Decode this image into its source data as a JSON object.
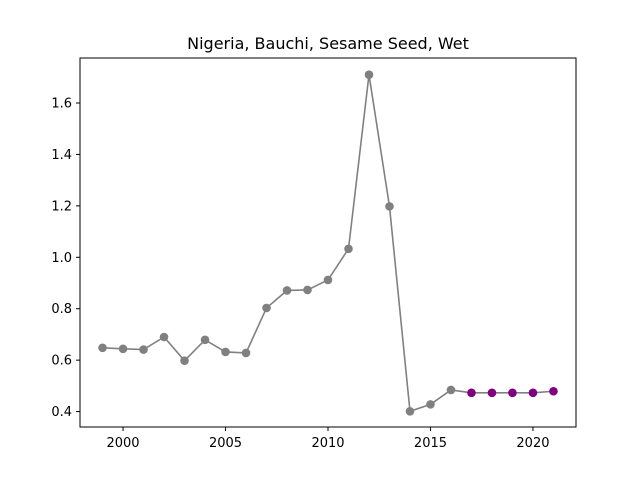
{
  "chart_data": {
    "type": "line",
    "title": "Nigeria, Bauchi, Sesame Seed, Wet",
    "xlabel": "",
    "ylabel": "",
    "xlim": [
      1997.9,
      2022.1
    ],
    "ylim": [
      0.34,
      1.775
    ],
    "grid": false,
    "x_ticks": [
      2000,
      2005,
      2010,
      2015,
      2020
    ],
    "y_ticks": [
      0.4,
      0.6,
      0.8,
      1.0,
      1.2,
      1.4,
      1.6
    ],
    "x_tick_labels": [
      "2000",
      "2005",
      "2010",
      "2015",
      "2020"
    ],
    "y_tick_labels": [
      "0.4",
      "0.6",
      "0.8",
      "1.0",
      "1.2",
      "1.4",
      "1.6"
    ],
    "line_color": "#808080",
    "series": [
      {
        "color": "#808080",
        "x": [
          1999,
          2000,
          2001,
          2002,
          2003,
          2004,
          2005,
          2006,
          2007,
          2008,
          2009,
          2010,
          2011,
          2012,
          2013,
          2014,
          2015,
          2016
        ],
        "y": [
          0.648,
          0.644,
          0.641,
          0.69,
          0.598,
          0.679,
          0.632,
          0.628,
          0.803,
          0.871,
          0.873,
          0.912,
          1.033,
          1.71,
          1.198,
          0.401,
          0.428,
          0.484
        ]
      },
      {
        "color": "#800080",
        "x": [
          2017,
          2018,
          2019,
          2020,
          2021
        ],
        "y": [
          0.473,
          0.473,
          0.473,
          0.473,
          0.479
        ]
      }
    ]
  }
}
